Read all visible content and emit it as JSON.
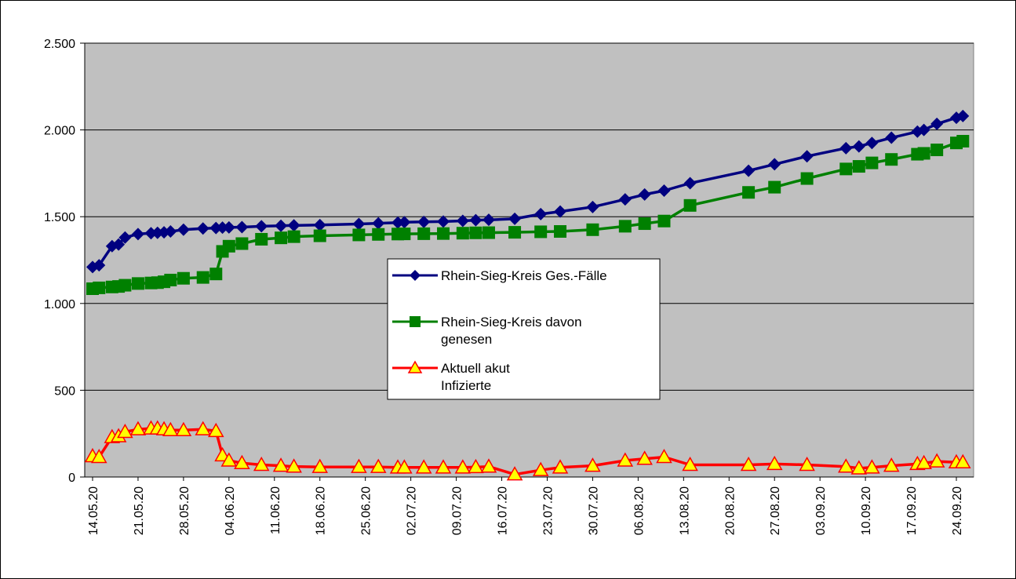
{
  "chart_data": {
    "type": "line",
    "title": "",
    "xlabel": "",
    "ylabel": "",
    "ylim": [
      0,
      2500
    ],
    "yticks": [
      0,
      500,
      1000,
      1500,
      2000,
      2500
    ],
    "ytick_labels": [
      "0",
      "500",
      "1.000",
      "1.500",
      "2.000",
      "2.500"
    ],
    "x_range": [
      "2020-05-14",
      "2020-09-24"
    ],
    "xtick_labels": [
      "14.05.20",
      "21.05.20",
      "28.05.20",
      "04.06.20",
      "11.06.20",
      "18.06.20",
      "25.06.20",
      "02.07.20",
      "09.07.20",
      "16.07.20",
      "23.07.20",
      "30.07.20",
      "06.08.20",
      "13.08.20",
      "20.08.20",
      "27.08.20",
      "03.09.20",
      "10.09.20",
      "17.09.20",
      "24.09.20"
    ],
    "grid": "horizontal",
    "legend_position": "center",
    "plot_background": "#c0c0c0",
    "series": [
      {
        "name": "Rhein-Sieg-Kreis Ges.-Fälle",
        "color": "#000080",
        "marker": "diamond",
        "x": [
          "2020-05-14",
          "2020-05-15",
          "2020-05-17",
          "2020-05-18",
          "2020-05-19",
          "2020-05-21",
          "2020-05-23",
          "2020-05-24",
          "2020-05-25",
          "2020-05-26",
          "2020-05-28",
          "2020-05-31",
          "2020-06-02",
          "2020-06-03",
          "2020-06-04",
          "2020-06-06",
          "2020-06-09",
          "2020-06-12",
          "2020-06-14",
          "2020-06-18",
          "2020-06-24",
          "2020-06-27",
          "2020-06-30",
          "2020-07-01",
          "2020-07-04",
          "2020-07-07",
          "2020-07-10",
          "2020-07-12",
          "2020-07-14",
          "2020-07-18",
          "2020-07-22",
          "2020-07-25",
          "2020-07-30",
          "2020-08-04",
          "2020-08-07",
          "2020-08-10",
          "2020-08-14",
          "2020-08-23",
          "2020-08-27",
          "2020-09-01",
          "2020-09-07",
          "2020-09-09",
          "2020-09-11",
          "2020-09-14",
          "2020-09-18",
          "2020-09-19",
          "2020-09-21",
          "2020-09-24",
          "2020-09-25"
        ],
        "values": [
          1210,
          1220,
          1330,
          1340,
          1380,
          1400,
          1405,
          1407,
          1410,
          1415,
          1425,
          1432,
          1435,
          1437,
          1438,
          1440,
          1445,
          1448,
          1450,
          1452,
          1458,
          1462,
          1466,
          1468,
          1470,
          1472,
          1476,
          1480,
          1482,
          1488,
          1515,
          1530,
          1556,
          1600,
          1628,
          1650,
          1693,
          1765,
          1802,
          1848,
          1895,
          1905,
          1925,
          1955,
          1990,
          2000,
          2035,
          2070,
          2080
        ]
      },
      {
        "name": "Rhein-Sieg-Kreis davon genesen",
        "color": "#008000",
        "marker": "square",
        "x": [
          "2020-05-14",
          "2020-05-15",
          "2020-05-17",
          "2020-05-18",
          "2020-05-19",
          "2020-05-21",
          "2020-05-23",
          "2020-05-24",
          "2020-05-25",
          "2020-05-26",
          "2020-05-28",
          "2020-05-31",
          "2020-06-02",
          "2020-06-03",
          "2020-06-04",
          "2020-06-06",
          "2020-06-09",
          "2020-06-12",
          "2020-06-14",
          "2020-06-18",
          "2020-06-24",
          "2020-06-27",
          "2020-06-30",
          "2020-07-01",
          "2020-07-04",
          "2020-07-07",
          "2020-07-10",
          "2020-07-12",
          "2020-07-14",
          "2020-07-18",
          "2020-07-22",
          "2020-07-25",
          "2020-07-30",
          "2020-08-04",
          "2020-08-07",
          "2020-08-10",
          "2020-08-14",
          "2020-08-23",
          "2020-08-27",
          "2020-09-01",
          "2020-09-07",
          "2020-09-09",
          "2020-09-11",
          "2020-09-14",
          "2020-09-18",
          "2020-09-19",
          "2020-09-21",
          "2020-09-24",
          "2020-09-25"
        ],
        "values": [
          1085,
          1090,
          1095,
          1098,
          1105,
          1115,
          1118,
          1120,
          1125,
          1135,
          1145,
          1150,
          1170,
          1300,
          1330,
          1345,
          1370,
          1378,
          1385,
          1390,
          1395,
          1398,
          1400,
          1401,
          1402,
          1403,
          1405,
          1407,
          1408,
          1410,
          1413,
          1415,
          1425,
          1445,
          1460,
          1475,
          1565,
          1640,
          1670,
          1720,
          1775,
          1790,
          1810,
          1830,
          1860,
          1865,
          1885,
          1925,
          1935
        ]
      },
      {
        "name": "Aktuell akut Infizierte",
        "color": "#ff0000",
        "marker": "triangle",
        "marker_fill": "#ffff00",
        "x": [
          "2020-05-14",
          "2020-05-15",
          "2020-05-17",
          "2020-05-18",
          "2020-05-19",
          "2020-05-21",
          "2020-05-23",
          "2020-05-24",
          "2020-05-25",
          "2020-05-26",
          "2020-05-28",
          "2020-05-31",
          "2020-06-02",
          "2020-06-03",
          "2020-06-04",
          "2020-06-06",
          "2020-06-09",
          "2020-06-12",
          "2020-06-14",
          "2020-06-18",
          "2020-06-24",
          "2020-06-27",
          "2020-06-30",
          "2020-07-01",
          "2020-07-04",
          "2020-07-07",
          "2020-07-10",
          "2020-07-12",
          "2020-07-14",
          "2020-07-18",
          "2020-07-22",
          "2020-07-25",
          "2020-07-30",
          "2020-08-04",
          "2020-08-07",
          "2020-08-10",
          "2020-08-14",
          "2020-08-23",
          "2020-08-27",
          "2020-09-01",
          "2020-09-07",
          "2020-09-09",
          "2020-09-11",
          "2020-09-14",
          "2020-09-18",
          "2020-09-19",
          "2020-09-21",
          "2020-09-24",
          "2020-09-25"
        ],
        "values": [
          120,
          115,
          230,
          235,
          260,
          275,
          280,
          280,
          275,
          270,
          270,
          275,
          265,
          125,
          95,
          80,
          70,
          65,
          60,
          58,
          58,
          58,
          55,
          55,
          55,
          55,
          55,
          57,
          60,
          15,
          40,
          55,
          65,
          95,
          105,
          115,
          70,
          70,
          75,
          70,
          60,
          50,
          55,
          65,
          75,
          80,
          90,
          85,
          85
        ]
      }
    ]
  }
}
